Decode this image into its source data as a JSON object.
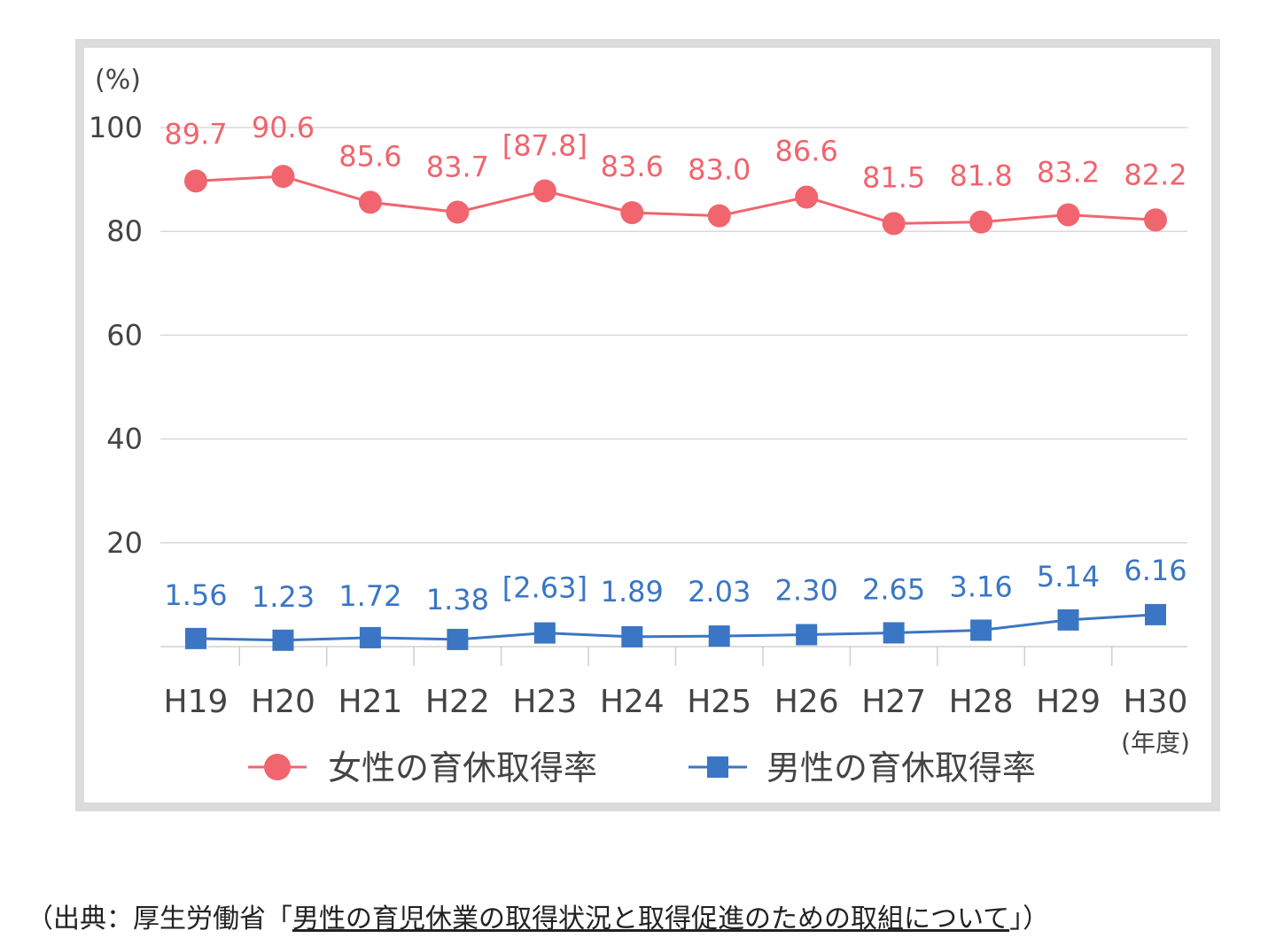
{
  "chart_data": {
    "type": "line",
    "ylabel": "(%)",
    "xlabel": "(年度)",
    "ylim": [
      0,
      100
    ],
    "yticks": [
      20,
      40,
      60,
      80,
      100
    ],
    "categories": [
      "H19",
      "H20",
      "H21",
      "H22",
      "H23",
      "H24",
      "H25",
      "H26",
      "H27",
      "H28",
      "H29",
      "H30"
    ],
    "series": [
      {
        "name": "女性の育休取得率",
        "color": "#f0656e",
        "marker": "circle",
        "values": [
          89.7,
          90.6,
          85.6,
          83.7,
          87.8,
          83.6,
          83.0,
          86.6,
          81.5,
          81.8,
          83.2,
          82.2
        ],
        "labels": [
          "89.7",
          "90.6",
          "85.6",
          "83.7",
          "[87.8]",
          "83.6",
          "83.0",
          "86.6",
          "81.5",
          "81.8",
          "83.2",
          "82.2"
        ]
      },
      {
        "name": "男性の育休取得率",
        "color": "#3a76c4",
        "marker": "square",
        "values": [
          1.56,
          1.23,
          1.72,
          1.38,
          2.63,
          1.89,
          2.03,
          2.3,
          2.65,
          3.16,
          5.14,
          6.16
        ],
        "labels": [
          "1.56",
          "1.23",
          "1.72",
          "1.38",
          "[2.63]",
          "1.89",
          "2.03",
          "2.30",
          "2.65",
          "3.16",
          "5.14",
          "6.16"
        ]
      }
    ],
    "grid": true,
    "legend": "bottom"
  },
  "source": {
    "prefix": "（出典：厚生労働省「",
    "link_text": "男性の育児休業の取得状況と取得促進のための取組について",
    "suffix": "」）"
  }
}
